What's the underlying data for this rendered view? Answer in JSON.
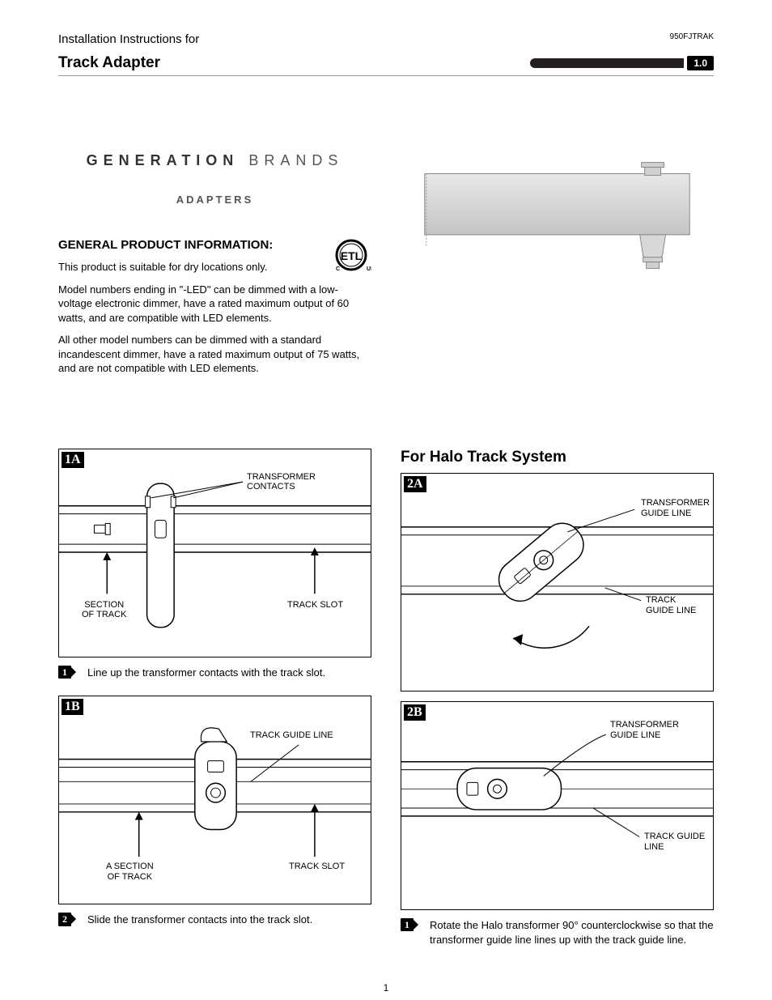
{
  "header": {
    "pretitle": "Installation Instructions for",
    "product_code": "950FJTRAK",
    "title": "Track Adapter",
    "version": "1.0"
  },
  "brand": {
    "word1": "GENERATION",
    "word2": "BRANDS",
    "subtitle": "ADAPTERS"
  },
  "gpi": {
    "heading": "GENERAL PRODUCT INFORMATION:",
    "p1": "This product is suitable for dry locations only.",
    "p2": "Model numbers ending in \"-LED\" can be dimmed with a low-voltage electronic dimmer, have a rated maximum output of 60 watts, and are compatible with LED elements.",
    "p3": "All other model numbers can be dimmed with a standard incandescent dimmer, have a rated maximum output of 75 watts, and are not compatible with LED elements."
  },
  "halo": {
    "title": "For Halo Track System"
  },
  "diagrams": {
    "d1a": {
      "badge": "1A",
      "labels": {
        "transformer_contacts": "TRANSFORMER\nCONTACTS",
        "section_of_track": "SECTION\nOF TRACK",
        "track_slot": "TRACK SLOT"
      }
    },
    "d1b": {
      "badge": "1B",
      "labels": {
        "track_guide_line": "TRACK GUIDE LINE",
        "a_section_of_track": "A SECTION\nOF TRACK",
        "track_slot": "TRACK SLOT"
      }
    },
    "d2a": {
      "badge": "2A",
      "labels": {
        "transformer_guide_line": "TRANSFORMER\nGUIDE LINE",
        "track_guide_line": "TRACK\nGUIDE LINE"
      }
    },
    "d2b": {
      "badge": "2B",
      "labels": {
        "transformer_guide_line": "TRANSFORMER\nGUIDE LINE",
        "track_guide_line": "TRACK GUIDE\nLINE"
      }
    }
  },
  "steps": {
    "s1": "Line up the transformer contacts with the track slot.",
    "s2": "Slide the transformer contacts into the track slot.",
    "halo_s1": "Rotate the Halo transformer 90° counterclockwise so that the transformer guide line lines up with the track guide line.",
    "n1": "1",
    "n2": "2",
    "nh1": "1"
  },
  "page_number": "1",
  "colors": {
    "black": "#000000",
    "grey_fill": "#d0d0d0",
    "grey_stroke": "#888888"
  }
}
